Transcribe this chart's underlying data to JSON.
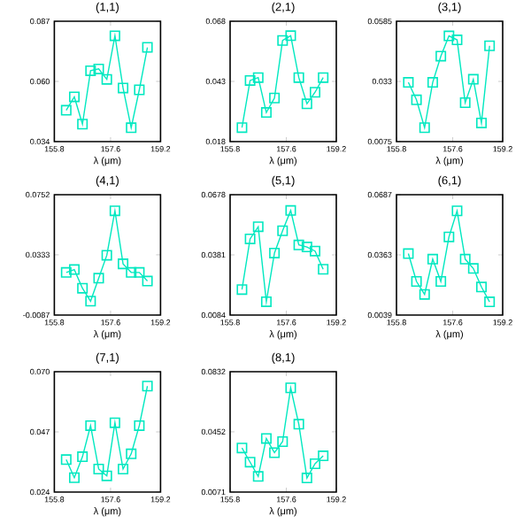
{
  "chart_data": [
    {
      "type": "line",
      "title": "(1,1)",
      "xlabel": "λ (μm)",
      "color": "#00e8c0",
      "marker": "square",
      "xlim": [
        155.8,
        159.2
      ],
      "xticks": [
        155.8,
        157.6,
        159.2
      ],
      "ylim": [
        0.034,
        0.087
      ],
      "yticks": [
        0.034,
        {
          "value": 0.0605,
          "label": "0.060"
        },
        0.087
      ],
      "x": [
        156.18,
        156.44,
        156.7,
        156.96,
        157.22,
        157.48,
        157.74,
        158.0,
        158.26,
        158.52,
        158.78
      ],
      "values": [
        0.0478,
        0.0537,
        0.0417,
        0.0652,
        0.066,
        0.0614,
        0.0806,
        0.0576,
        0.0401,
        0.0568,
        0.0755
      ]
    },
    {
      "type": "line",
      "title": "(2,1)",
      "xlabel": "λ (μm)",
      "color": "#00e8c0",
      "marker": "square",
      "xlim": [
        155.8,
        159.2
      ],
      "xticks": [
        155.8,
        157.6,
        159.2
      ],
      "ylim": [
        0.018,
        0.068
      ],
      "yticks": [
        0.018,
        0.043,
        0.068
      ],
      "x": [
        156.18,
        156.44,
        156.7,
        156.96,
        157.22,
        157.48,
        157.74,
        158.0,
        158.26,
        158.52,
        158.78
      ],
      "values": [
        0.0238,
        0.0434,
        0.0446,
        0.0301,
        0.0361,
        0.06,
        0.062,
        0.0446,
        0.0337,
        0.0385,
        0.0446
      ]
    },
    {
      "type": "line",
      "title": "(3,1)",
      "xlabel": "λ (μm)",
      "color": "#00e8c0",
      "marker": "square",
      "xlim": [
        155.8,
        159.2
      ],
      "xticks": [
        155.8,
        157.6,
        159.2
      ],
      "ylim": [
        0.0075,
        0.0585
      ],
      "yticks": [
        0.0075,
        0.033,
        0.0585
      ],
      "x": [
        156.18,
        156.44,
        156.7,
        156.96,
        157.22,
        157.48,
        157.74,
        158.0,
        158.26,
        158.52,
        158.78
      ],
      "values": [
        0.0326,
        0.0252,
        0.0134,
        0.0326,
        0.0437,
        0.0523,
        0.0506,
        0.024,
        0.0339,
        0.0154,
        0.0481
      ]
    },
    {
      "type": "line",
      "title": "(4,1)",
      "xlabel": "λ (μm)",
      "color": "#00e8c0",
      "marker": "square",
      "xlim": [
        155.8,
        159.2
      ],
      "xticks": [
        155.8,
        157.6,
        159.2
      ],
      "ylim": [
        -0.0087,
        0.0752
      ],
      "yticks": [
        -0.0087,
        0.0333,
        0.0752
      ],
      "x": [
        156.18,
        156.44,
        156.7,
        156.96,
        157.22,
        157.48,
        157.74,
        158.0,
        158.26,
        158.52,
        158.78
      ],
      "values": [
        0.021,
        0.023,
        0.01,
        0.001,
        0.017,
        0.033,
        0.064,
        0.027,
        0.021,
        0.021,
        0.015
      ]
    },
    {
      "type": "line",
      "title": "(5,1)",
      "xlabel": "λ (μm)",
      "color": "#00e8c0",
      "marker": "square",
      "xlim": [
        155.8,
        159.2
      ],
      "xticks": [
        155.8,
        157.6,
        159.2
      ],
      "ylim": [
        0.0084,
        0.0678
      ],
      "yticks": [
        0.0084,
        0.0381,
        0.0678
      ],
      "x": [
        156.18,
        156.44,
        156.7,
        156.96,
        157.22,
        157.48,
        157.74,
        158.0,
        158.26,
        158.52,
        158.78
      ],
      "values": [
        0.021,
        0.046,
        0.052,
        0.015,
        0.039,
        0.05,
        0.06,
        0.043,
        0.042,
        0.04,
        0.031
      ]
    },
    {
      "type": "line",
      "title": "(6,1)",
      "xlabel": "λ (μm)",
      "color": "#00e8c0",
      "marker": "square",
      "xlim": [
        155.8,
        159.2
      ],
      "xticks": [
        155.8,
        157.6,
        159.2
      ],
      "ylim": [
        0.0039,
        0.0687
      ],
      "yticks": [
        0.0039,
        0.0363,
        0.0687
      ],
      "x": [
        156.18,
        156.44,
        156.7,
        156.96,
        157.22,
        157.48,
        157.74,
        158.0,
        158.26,
        158.52,
        158.78
      ],
      "values": [
        0.037,
        0.022,
        0.015,
        0.034,
        0.022,
        0.046,
        0.06,
        0.034,
        0.029,
        0.019,
        0.011
      ]
    },
    {
      "type": "line",
      "title": "(7,1)",
      "xlabel": "λ (μm)",
      "color": "#00e8c0",
      "marker": "square",
      "xlim": [
        155.8,
        159.2
      ],
      "xticks": [
        155.8,
        157.6,
        159.2
      ],
      "ylim": [
        0.024,
        0.07
      ],
      "yticks": [
        0.024,
        0.047,
        {
          "value": 0.07,
          "label": "0.070"
        }
      ],
      "x": [
        156.18,
        156.44,
        156.7,
        156.96,
        157.22,
        157.48,
        157.74,
        158.0,
        158.26,
        158.52,
        158.78
      ],
      "values": [
        0.0364,
        0.0295,
        0.0375,
        0.0494,
        0.0328,
        0.0302,
        0.0505,
        0.0328,
        0.0386,
        0.0494,
        0.0645
      ]
    },
    {
      "type": "line",
      "title": "(8,1)",
      "xlabel": "λ (μm)",
      "color": "#00e8c0",
      "marker": "square",
      "xlim": [
        155.8,
        159.2
      ],
      "xticks": [
        155.8,
        157.6,
        159.2
      ],
      "ylim": [
        0.0071,
        0.0832
      ],
      "yticks": [
        0.0071,
        0.0452,
        0.0832
      ],
      "x": [
        156.18,
        156.44,
        156.7,
        156.96,
        157.22,
        157.48,
        157.74,
        158.0,
        158.26,
        158.52,
        158.78
      ],
      "values": [
        0.035,
        0.026,
        0.017,
        0.041,
        0.032,
        0.039,
        0.073,
        0.05,
        0.016,
        0.025,
        0.03
      ]
    }
  ]
}
